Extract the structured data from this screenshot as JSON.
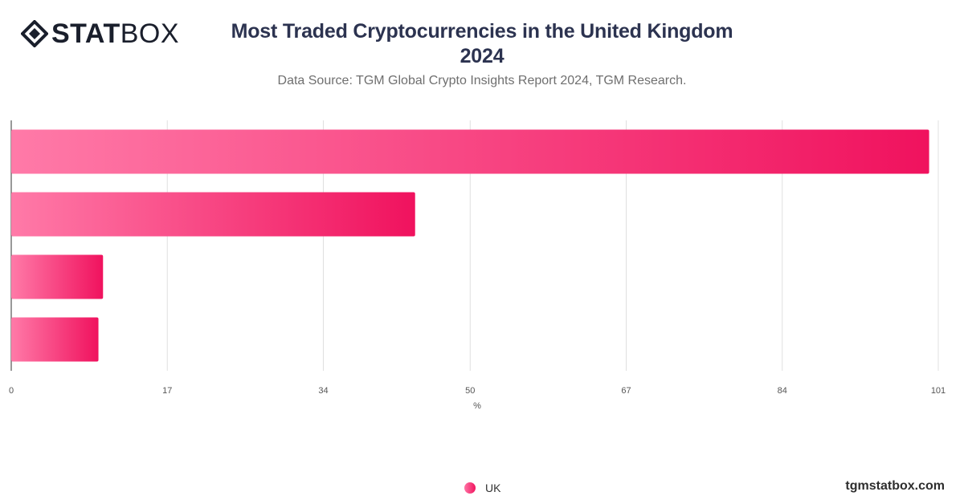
{
  "brand": {
    "logo_bold": "STAT",
    "logo_thin": "BOX",
    "footer": "tgmstatbox.com"
  },
  "header": {
    "title_line1": "Most Traded Cryptocurrencies in the United Kingdom",
    "title_line2": "2024",
    "subtitle": "Data Source: TGM Global Crypto Insights Report 2024, TGM Research."
  },
  "chart_data": {
    "type": "bar",
    "orientation": "horizontal",
    "categories": [
      "",
      "",
      "",
      ""
    ],
    "series": [
      {
        "name": "UK",
        "values": [
          100,
          44,
          10,
          9.5
        ]
      }
    ],
    "xlabel": "%",
    "xlim": [
      0,
      101
    ],
    "xticks": [
      0,
      17,
      34,
      50,
      67,
      84,
      101
    ],
    "grid": true,
    "legend_position": "bottom-center",
    "colors": {
      "bar_start": "#ff7aa8",
      "bar_end": "#f0125e",
      "grid": "#e0e0e0",
      "axis": "#333333"
    }
  }
}
